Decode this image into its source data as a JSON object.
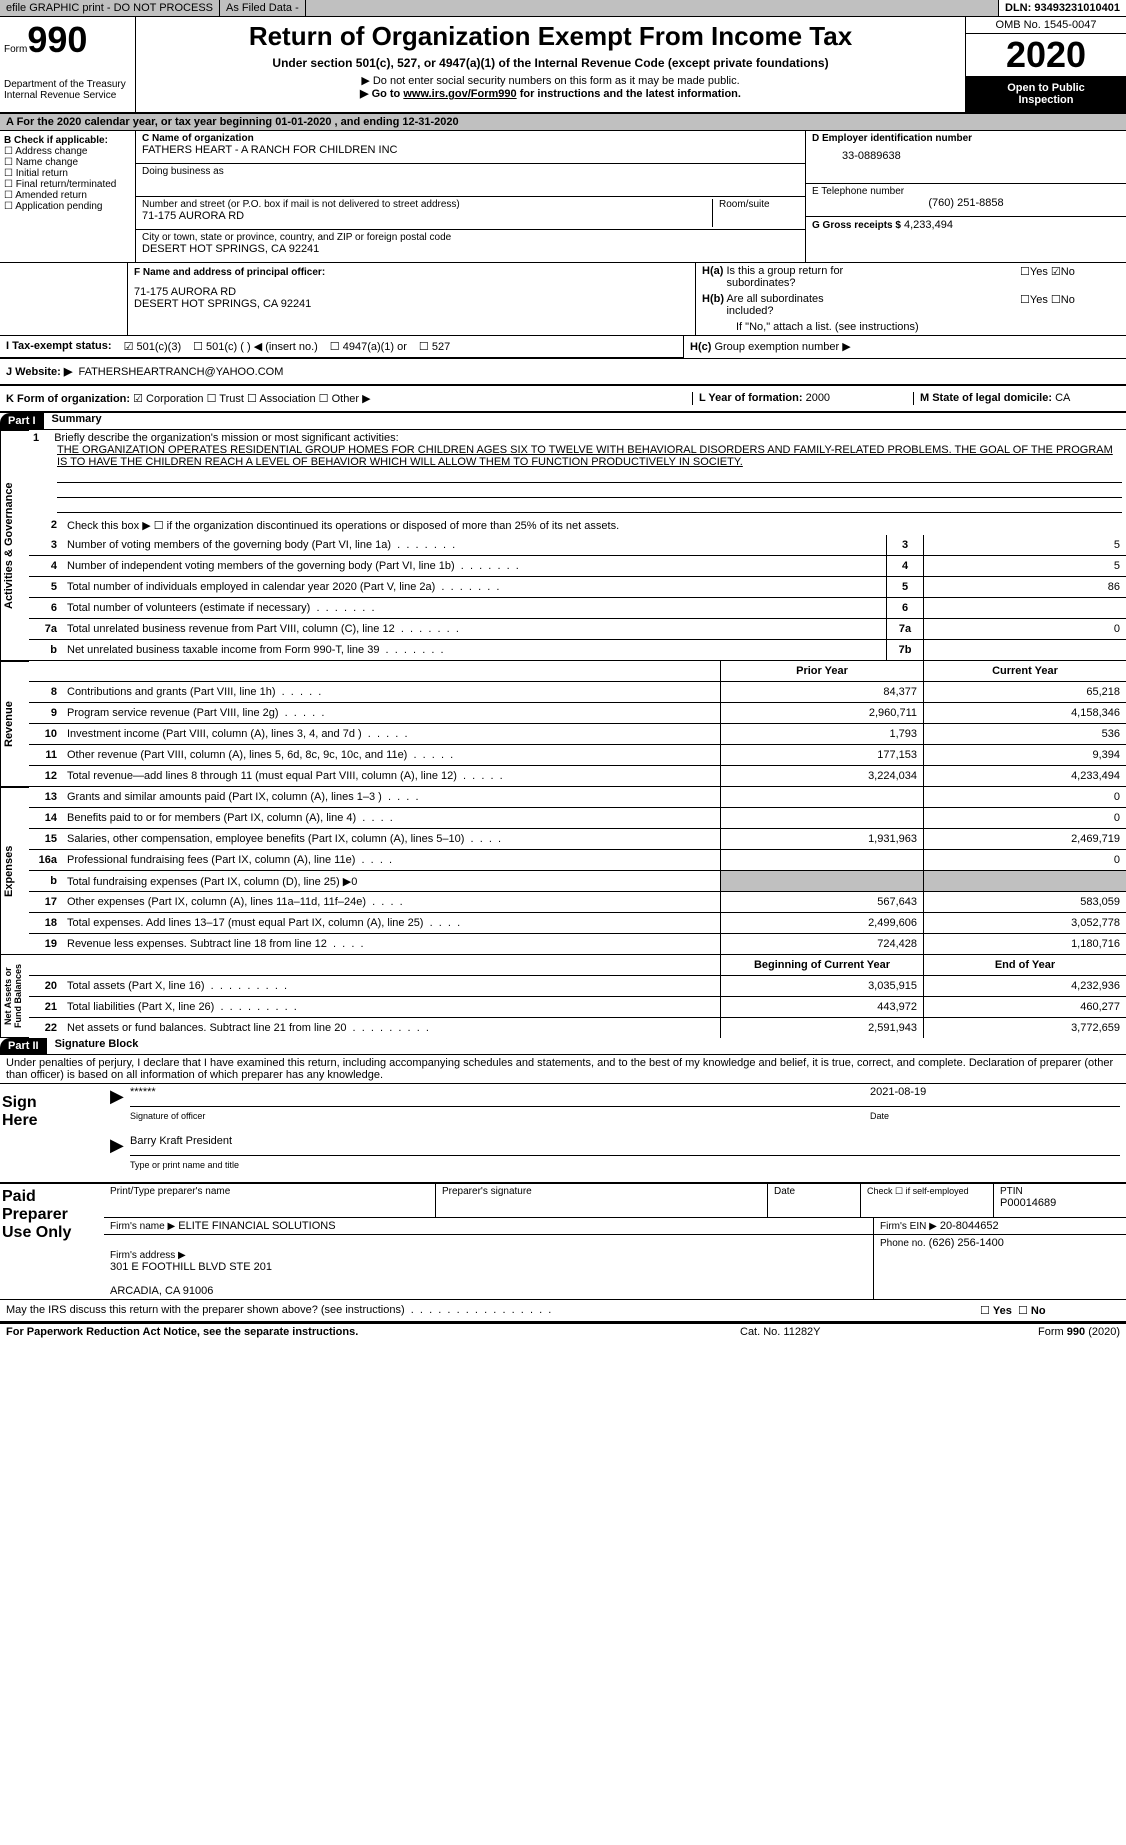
{
  "topbar": {
    "efile": "efile GRAPHIC print - DO NOT PROCESS",
    "asfiled": "As Filed Data -",
    "dln": "DLN: 93493231010401"
  },
  "header": {
    "form_label": "Form",
    "form_number": "990",
    "dept": "Department of the Treasury\nInternal Revenue Service",
    "title": "Return of Organization Exempt From Income Tax",
    "subtitle": "Under section 501(c), 527, or 4947(a)(1) of the Internal Revenue Code (except private foundations)",
    "instr1": "▶ Do not enter social security numbers on this form as it may be made public.",
    "instr2": "▶ Go to www.irs.gov/Form990 for instructions and the latest information.",
    "omb": "OMB No. 1545-0047",
    "year": "2020",
    "open_public": "Open to Public\nInspection"
  },
  "sectionA": "A  For the 2020 calendar year, or tax year beginning 01-01-2020   , and ending 12-31-2020",
  "boxB": {
    "label": "B Check if applicable:",
    "items": [
      "Address change",
      "Name change",
      "Initial return",
      "Final return/terminated",
      "Amended return",
      "Application pending"
    ]
  },
  "boxC": {
    "label": "C Name of organization",
    "name": "FATHERS HEART - A RANCH FOR CHILDREN INC",
    "dba_label": "Doing business as",
    "street_label": "Number and street (or P.O. box if mail is not delivered to street address)",
    "room_label": "Room/suite",
    "street": "71-175 AURORA RD",
    "city_label": "City or town, state or province, country, and ZIP or foreign postal code",
    "city": "DESERT HOT SPRINGS, CA  92241"
  },
  "boxD": {
    "label": "D Employer identification number",
    "value": "33-0889638"
  },
  "boxE": {
    "label": "E Telephone number",
    "value": "(760) 251-8858"
  },
  "boxG": {
    "label": "G Gross receipts $",
    "value": "4,233,494"
  },
  "boxF": {
    "label": "F  Name and address of principal officer:",
    "line1": "71-175 AURORA RD",
    "line2": "DESERT HOT SPRINGS, CA  92241"
  },
  "boxH": {
    "ha": "H(a)  Is this a group return for subordinates?",
    "ha_yes": "Yes",
    "ha_no": "No",
    "hb": "H(b)  Are all subordinates included?",
    "hb_note": "If \"No,\" attach a list. (see instructions)",
    "hc": "H(c)  Group exemption number ▶"
  },
  "boxI": {
    "label": "I  Tax-exempt status:",
    "opt1": "501(c)(3)",
    "opt2": "501(c) (  ) ◀ (insert no.)",
    "opt3": "4947(a)(1) or",
    "opt4": "527"
  },
  "boxJ": {
    "label": "J  Website: ▶",
    "value": "FATHERSHEARTRANCH@YAHOO.COM"
  },
  "boxK": {
    "label": "K Form of organization:",
    "corp": "Corporation",
    "trust": "Trust",
    "assoc": "Association",
    "other": "Other ▶"
  },
  "boxL": {
    "label": "L Year of formation:",
    "value": "2000"
  },
  "boxM": {
    "label": "M State of legal domicile:",
    "value": "CA"
  },
  "part1": {
    "header": "Part I",
    "title": "Summary",
    "line1_label": "Briefly describe the organization's mission or most significant activities:",
    "line1_num": "1",
    "mission": "THE ORGANIZATION OPERATES RESIDENTIAL GROUP HOMES FOR CHILDREN AGES SIX TO TWELVE WITH BEHAVIORAL DISORDERS AND FAMILY-RELATED PROBLEMS. THE GOAL OF THE PROGRAM IS TO HAVE THE CHILDREN REACH A LEVEL OF BEHAVIOR WHICH WILL ALLOW THEM TO FUNCTION PRODUCTIVELY IN SOCIETY.",
    "line2": "Check this box ▶ ☐ if the organization discontinued its operations or disposed of more than 25% of its net assets.",
    "rows_gov": [
      {
        "n": "3",
        "t": "Number of voting members of the governing body (Part VI, line 1a)",
        "box": "3",
        "v": "5"
      },
      {
        "n": "4",
        "t": "Number of independent voting members of the governing body (Part VI, line 1b)",
        "box": "4",
        "v": "5"
      },
      {
        "n": "5",
        "t": "Total number of individuals employed in calendar year 2020 (Part V, line 2a)",
        "box": "5",
        "v": "86"
      },
      {
        "n": "6",
        "t": "Total number of volunteers (estimate if necessary)",
        "box": "6",
        "v": ""
      },
      {
        "n": "7a",
        "t": "Total unrelated business revenue from Part VIII, column (C), line 12",
        "box": "7a",
        "v": "0"
      },
      {
        "n": "b",
        "t": "Net unrelated business taxable income from Form 990-T, line 39",
        "box": "7b",
        "v": ""
      }
    ],
    "col_prior": "Prior Year",
    "col_current": "Current Year",
    "rows_rev": [
      {
        "n": "8",
        "t": "Contributions and grants (Part VIII, line 1h)",
        "p": "84,377",
        "c": "65,218"
      },
      {
        "n": "9",
        "t": "Program service revenue (Part VIII, line 2g)",
        "p": "2,960,711",
        "c": "4,158,346"
      },
      {
        "n": "10",
        "t": "Investment income (Part VIII, column (A), lines 3, 4, and 7d )",
        "p": "1,793",
        "c": "536"
      },
      {
        "n": "11",
        "t": "Other revenue (Part VIII, column (A), lines 5, 6d, 8c, 9c, 10c, and 11e)",
        "p": "177,153",
        "c": "9,394"
      },
      {
        "n": "12",
        "t": "Total revenue—add lines 8 through 11 (must equal Part VIII, column (A), line 12)",
        "p": "3,224,034",
        "c": "4,233,494"
      }
    ],
    "rows_exp": [
      {
        "n": "13",
        "t": "Grants and similar amounts paid (Part IX, column (A), lines 1–3 )",
        "p": "",
        "c": "0"
      },
      {
        "n": "14",
        "t": "Benefits paid to or for members (Part IX, column (A), line 4)",
        "p": "",
        "c": "0"
      },
      {
        "n": "15",
        "t": "Salaries, other compensation, employee benefits (Part IX, column (A), lines 5–10)",
        "p": "1,931,963",
        "c": "2,469,719"
      },
      {
        "n": "16a",
        "t": "Professional fundraising fees (Part IX, column (A), line 11e)",
        "p": "",
        "c": "0"
      },
      {
        "n": "b",
        "t": "Total fundraising expenses (Part IX, column (D), line 25) ▶0",
        "p": "",
        "c": "",
        "gray": true
      },
      {
        "n": "17",
        "t": "Other expenses (Part IX, column (A), lines 11a–11d, 11f–24e)",
        "p": "567,643",
        "c": "583,059"
      },
      {
        "n": "18",
        "t": "Total expenses. Add lines 13–17 (must equal Part IX, column (A), line 25)",
        "p": "2,499,606",
        "c": "3,052,778"
      },
      {
        "n": "19",
        "t": "Revenue less expenses. Subtract line 18 from line 12",
        "p": "724,428",
        "c": "1,180,716"
      }
    ],
    "col_begin": "Beginning of Current Year",
    "col_end": "End of Year",
    "rows_net": [
      {
        "n": "20",
        "t": "Total assets (Part X, line 16)",
        "p": "3,035,915",
        "c": "4,232,936"
      },
      {
        "n": "21",
        "t": "Total liabilities (Part X, line 26)",
        "p": "443,972",
        "c": "460,277"
      },
      {
        "n": "22",
        "t": "Net assets or fund balances. Subtract line 21 from line 20",
        "p": "2,591,943",
        "c": "3,772,659"
      }
    ],
    "side_gov": "Activities & Governance",
    "side_rev": "Revenue",
    "side_exp": "Expenses",
    "side_net": "Net Assets or\nFund Balances"
  },
  "part2": {
    "header": "Part II",
    "title": "Signature Block",
    "penalties": "Under penalties of perjury, I declare that I have examined this return, including accompanying schedules and statements, and to the best of my knowledge and belief, it is true, correct, and complete. Declaration of preparer (other than officer) is based on all information of which preparer has any knowledge.",
    "sign_here": "Sign\nHere",
    "stars": "******",
    "sig_date": "2021-08-19",
    "sig_officer_label": "Signature of officer",
    "date_label": "Date",
    "name_title": "Barry Kraft  President",
    "name_title_label": "Type or print name and title",
    "paid_prep": "Paid\nPreparer\nUse Only",
    "pp_name_label": "Print/Type preparer's name",
    "pp_sig_label": "Preparer's signature",
    "pp_date_label": "Date",
    "pp_check": "Check ☐ if self-employed",
    "ptin_label": "PTIN",
    "ptin": "P00014689",
    "firm_name_label": "Firm's name   ▶",
    "firm_name": "ELITE FINANCIAL SOLUTIONS",
    "firm_ein_label": "Firm's EIN ▶",
    "firm_ein": "20-8044652",
    "firm_addr_label": "Firm's address ▶",
    "firm_addr": "301 E FOOTHILL BLVD STE 201\n\nARCADIA, CA  91006",
    "firm_phone_label": "Phone no.",
    "firm_phone": "(626) 256-1400",
    "discuss": "May the IRS discuss this return with the preparer shown above? (see instructions)",
    "yes": "Yes",
    "no": "No"
  },
  "footer": {
    "left": "For Paperwork Reduction Act Notice, see the separate instructions.",
    "center": "Cat. No. 11282Y",
    "right": "Form 990 (2020)"
  }
}
